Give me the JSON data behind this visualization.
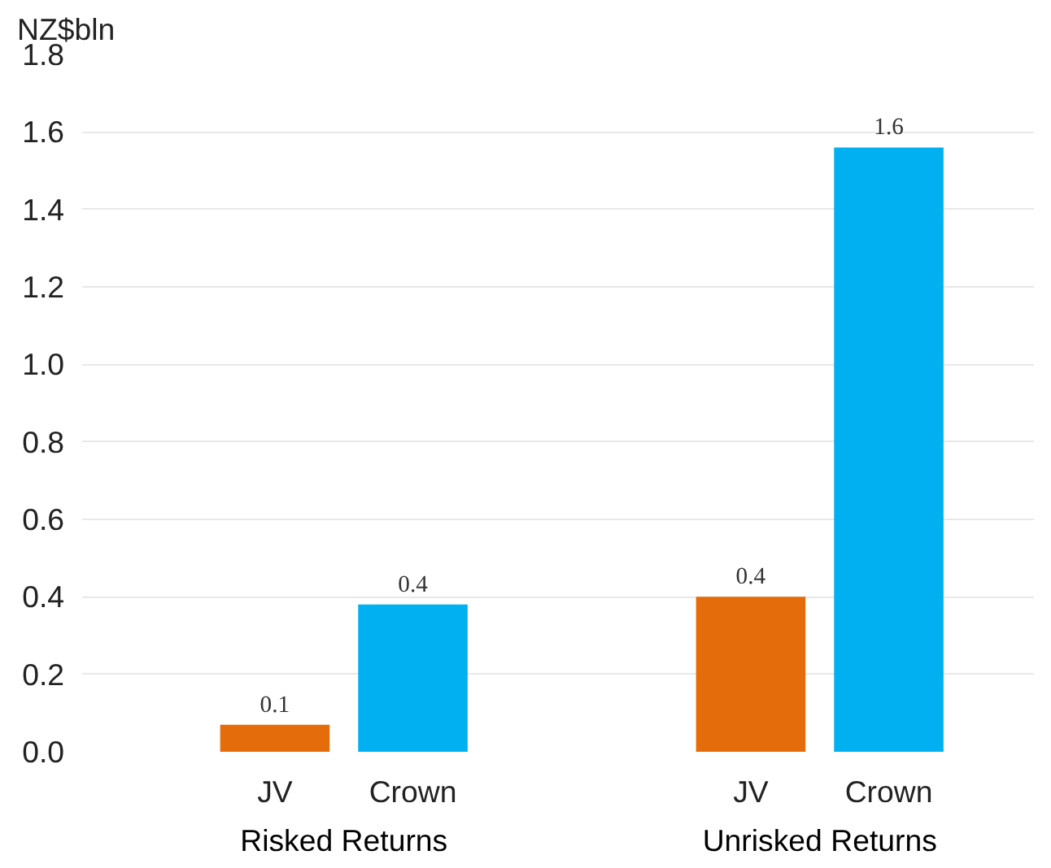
{
  "chart_data": {
    "type": "bar",
    "ylabel": "NZ$bln",
    "categories": [
      "Risked Returns",
      "Unrisked Returns"
    ],
    "series": [
      {
        "name": "JV",
        "color": "#e46c0a",
        "values": [
          0.07,
          0.4
        ],
        "value_labels": [
          "0.1",
          "0.4"
        ]
      },
      {
        "name": "Crown",
        "color": "#00b0f0",
        "values": [
          0.38,
          1.56
        ],
        "value_labels": [
          "0.4",
          "1.6"
        ]
      }
    ],
    "ylim": [
      0,
      1.8
    ],
    "yticks": [
      {
        "value": 0,
        "label": "0.0"
      },
      0.2,
      0.4,
      0.6,
      0.8,
      {
        "value": 1,
        "label": "1.0"
      },
      1.2,
      1.4,
      1.6,
      1.8
    ],
    "grid": "y"
  }
}
